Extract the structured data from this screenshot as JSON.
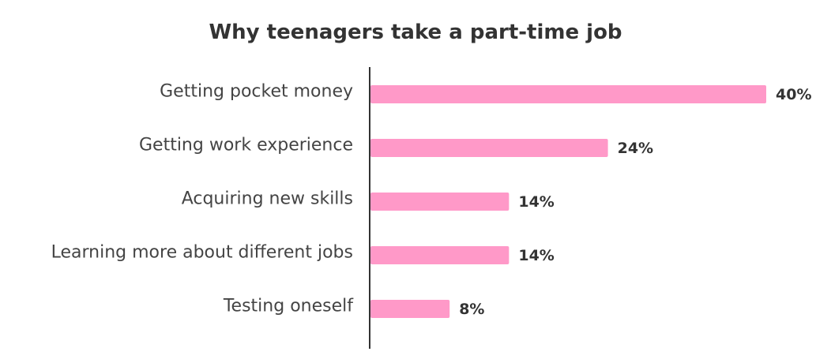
{
  "chart_data": {
    "type": "bar",
    "orientation": "horizontal",
    "title": "Why teenagers take a part-time job",
    "categories": [
      "Getting pocket money",
      "Getting work experience",
      "Acquiring new skills",
      "Learning more about different jobs",
      "Testing oneself"
    ],
    "values": [
      40,
      24,
      14,
      14,
      8
    ],
    "value_labels": [
      "40%",
      "24%",
      "14%",
      "14%",
      "8%"
    ],
    "unit": "%",
    "xlim": [
      0,
      40
    ],
    "grid": false,
    "bar_color": "#ff99c8",
    "axis_color": "#333333"
  }
}
